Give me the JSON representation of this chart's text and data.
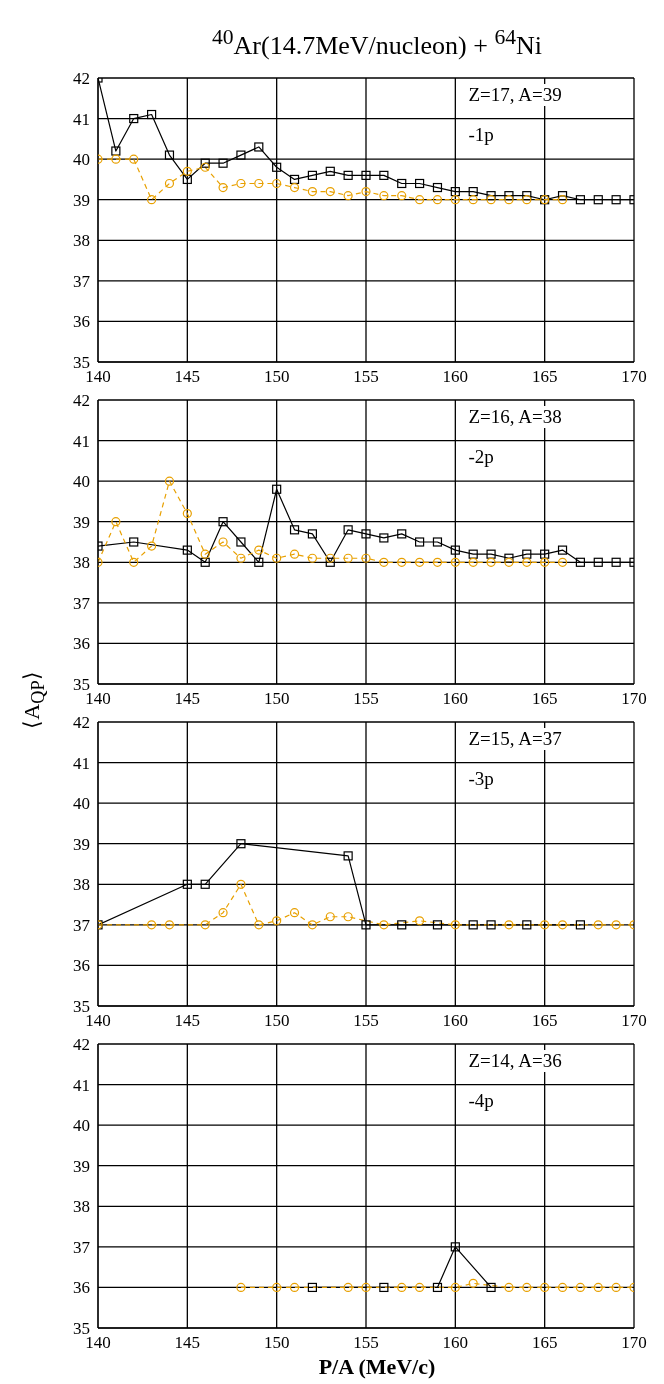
{
  "chart_data": [
    {
      "type": "line",
      "title": "$^{40}$Ar(14.7MeV/nucleon) + $^{64}$Ni",
      "annotations": [
        "Z=17, A=39",
        "-1p"
      ],
      "xlim": [
        140,
        170
      ],
      "xticks": [
        140,
        145,
        150,
        155,
        160,
        165,
        170
      ],
      "ylim": [
        35,
        42
      ],
      "yticks": [
        35,
        36,
        37,
        38,
        39,
        40,
        41,
        42
      ],
      "grid": true,
      "series": [
        {
          "color": "#000000",
          "marker": "square",
          "line_style": "solid",
          "x": [
            140,
            141,
            142,
            143,
            144,
            145,
            146,
            147,
            148,
            149,
            150,
            151,
            152,
            153,
            154,
            155,
            156,
            157,
            158,
            159,
            160,
            161,
            162,
            163,
            164,
            165,
            166,
            167,
            168,
            169,
            170
          ],
          "values": [
            42,
            40.2,
            41,
            41.1,
            40.1,
            39.5,
            39.9,
            39.9,
            40.1,
            40.3,
            39.8,
            39.5,
            39.6,
            39.7,
            39.6,
            39.6,
            39.6,
            39.4,
            39.4,
            39.3,
            39.2,
            39.2,
            39.1,
            39.1,
            39.1,
            39,
            39.1,
            39,
            39,
            39,
            39
          ]
        },
        {
          "color": "#e8a000",
          "marker": "circle",
          "line_style": "dashed",
          "x": [
            140,
            141,
            142,
            143,
            144,
            145,
            146,
            147,
            148,
            149,
            150,
            151,
            152,
            153,
            154,
            155,
            156,
            157,
            158,
            159,
            160,
            161,
            162,
            163,
            164,
            165,
            166
          ],
          "values": [
            40,
            40,
            40,
            39,
            39.4,
            39.7,
            39.8,
            39.3,
            39.4,
            39.4,
            39.4,
            39.3,
            39.2,
            39.2,
            39.1,
            39.2,
            39.1,
            39.1,
            39,
            39,
            39,
            39,
            39,
            39,
            39,
            39,
            39
          ]
        }
      ]
    },
    {
      "type": "line",
      "ylabel": "⟨A$_{QP}$⟩",
      "annotations": [
        "Z=16, A=38",
        "-2p"
      ],
      "xlim": [
        140,
        170
      ],
      "xticks": [
        140,
        145,
        150,
        155,
        160,
        165,
        170
      ],
      "ylim": [
        35,
        42
      ],
      "yticks": [
        35,
        36,
        37,
        38,
        39,
        40,
        41,
        42
      ],
      "grid": true,
      "series": [
        {
          "color": "#000000",
          "marker": "square",
          "line_style": "solid",
          "x": [
            140,
            142,
            145,
            146,
            147,
            148,
            149,
            150,
            151,
            152,
            153,
            154,
            155,
            156,
            157,
            158,
            159,
            160,
            161,
            162,
            163,
            164,
            165,
            166,
            167,
            168,
            169,
            170
          ],
          "values": [
            38.4,
            38.5,
            38.3,
            38,
            39,
            38.5,
            38,
            39.8,
            38.8,
            38.7,
            38,
            38.8,
            38.7,
            38.6,
            38.7,
            38.5,
            38.5,
            38.3,
            38.2,
            38.2,
            38.1,
            38.2,
            38.2,
            38.3,
            38,
            38,
            38,
            38
          ]
        },
        {
          "color": "#e8a000",
          "marker": "circle",
          "line_style": "dashed",
          "x": [
            140,
            141,
            142,
            143,
            144,
            145,
            146,
            147,
            148,
            149,
            150,
            151,
            152,
            153,
            154,
            155,
            156,
            157,
            158,
            159,
            160,
            161,
            162,
            163,
            164,
            165,
            166
          ],
          "values": [
            38,
            39,
            38,
            38.4,
            40,
            39.2,
            38.2,
            38.5,
            38.1,
            38.3,
            38.1,
            38.2,
            38.1,
            38.1,
            38.1,
            38.1,
            38,
            38,
            38,
            38,
            38,
            38,
            38,
            38,
            38,
            38,
            38
          ]
        }
      ]
    },
    {
      "type": "line",
      "annotations": [
        "Z=15, A=37",
        "-3p"
      ],
      "xlim": [
        140,
        170
      ],
      "xticks": [
        140,
        145,
        150,
        155,
        160,
        165,
        170
      ],
      "ylim": [
        35,
        42
      ],
      "yticks": [
        35,
        36,
        37,
        38,
        39,
        40,
        41,
        42
      ],
      "grid": true,
      "series": [
        {
          "color": "#000000",
          "marker": "square",
          "line_style": "solid",
          "x": [
            140,
            145,
            146,
            148,
            154,
            155,
            157,
            159,
            161,
            162,
            164,
            167
          ],
          "values": [
            37,
            38,
            38,
            39,
            38.7,
            37,
            37,
            37,
            37,
            37,
            37,
            37
          ]
        },
        {
          "color": "#e8a000",
          "marker": "circle",
          "line_style": "dashed",
          "x": [
            140,
            143,
            144,
            146,
            147,
            148,
            149,
            150,
            151,
            152,
            153,
            154,
            156,
            158,
            160,
            163,
            165,
            166,
            168,
            169,
            170
          ],
          "values": [
            37,
            37,
            37,
            37,
            37.3,
            38,
            37,
            37.1,
            37.3,
            37,
            37.2,
            37.2,
            37,
            37.1,
            37,
            37,
            37,
            37,
            37,
            37,
            37
          ]
        }
      ]
    },
    {
      "type": "line",
      "xlabel": "P/A (MeV/c)",
      "annotations": [
        "Z=14, A=36",
        "-4p"
      ],
      "xlim": [
        140,
        170
      ],
      "xticks": [
        140,
        145,
        150,
        155,
        160,
        165,
        170
      ],
      "ylim": [
        35,
        42
      ],
      "yticks": [
        35,
        36,
        37,
        38,
        39,
        40,
        41,
        42
      ],
      "grid": true,
      "series": [
        {
          "color": "#000000",
          "marker": "square",
          "line_style": "solid",
          "x": [
            152,
            156,
            159,
            160,
            162
          ],
          "values": [
            36,
            36,
            36,
            37,
            36
          ]
        },
        {
          "color": "#e8a000",
          "marker": "circle",
          "line_style": "dashed",
          "x": [
            148,
            150,
            151,
            154,
            155,
            157,
            158,
            160,
            161,
            163,
            164,
            165,
            166,
            167,
            168,
            169,
            170
          ],
          "values": [
            36,
            36,
            36,
            36,
            36,
            36,
            36,
            36,
            36.1,
            36,
            36,
            36,
            36,
            36,
            36,
            36,
            36
          ]
        }
      ]
    }
  ]
}
